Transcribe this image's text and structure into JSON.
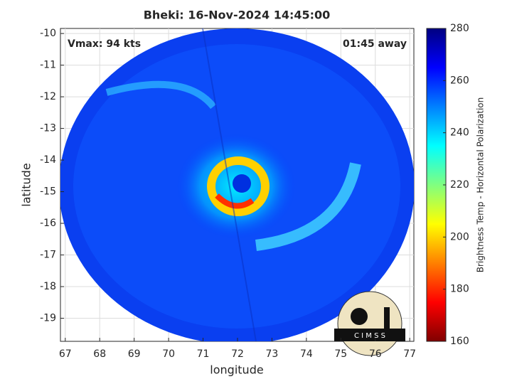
{
  "chart_data": {
    "type": "heatmap",
    "title": "Bheki: 16-Nov-2024 14:45:00",
    "xlabel": "longitude",
    "ylabel": "latitude",
    "annotations": [
      "Vmax: 94 kts",
      "01:45 away"
    ],
    "xlim": [
      66.86,
      77.12
    ],
    "xticks": [
      67,
      68,
      69,
      70,
      71,
      72,
      73,
      74,
      75,
      76,
      77
    ],
    "ylim": [
      -19.73,
      -9.84
    ],
    "yticks": [
      -10,
      -11,
      -12,
      -13,
      -14,
      -15,
      -16,
      -17,
      -18,
      -19
    ],
    "grid": true,
    "colorbar_label": "Brightness Temp - Horizontal Polarization",
    "clim": [
      160,
      280
    ],
    "cticks": [
      160,
      180,
      200,
      220,
      240,
      260,
      280
    ],
    "colormap": [
      "#800000",
      "#ff0000",
      "#ff8000",
      "#ffff00",
      "#80ff80",
      "#00ffff",
      "#0080ff",
      "#0000ff",
      "#000080"
    ]
  },
  "logo_text": "C I M S S"
}
